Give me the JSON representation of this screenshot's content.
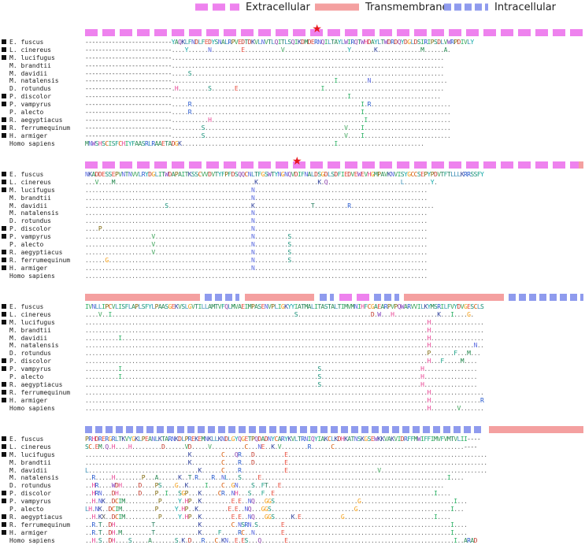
{
  "legend": [
    {
      "label": "Extracellular",
      "color": "#ee82ee",
      "style": "dashed"
    },
    {
      "label": "Transmembrane",
      "color": "#f4a0a0",
      "style": "solid"
    },
    {
      "label": "Intracellular",
      "color": "#8f9bee",
      "style": "dotted"
    }
  ],
  "colors": {
    "extracellular": "#ee82ee",
    "transmembrane": "#f4a0a0",
    "intracellular": "#8f9bee",
    "star": "#e8161c",
    "residues": {
      "A": "#2e8b57",
      "B": "#1aa3a3",
      "C": "#d35400",
      "D": "#c0392b",
      "E": "#e74c3c",
      "F": "#16a085",
      "G": "#f39c12",
      "H": "#e84393",
      "I": "#27ae60",
      "K": "#2c3e99",
      "L": "#3b8fb5",
      "M": "#1e8449",
      "N": "#5b6be0",
      "P": "#7d6608",
      "Q": "#8e44ad",
      "R": "#2255cc",
      "S": "#138d75",
      "T": "#1f7a5a",
      "V": "#3da35a",
      "W": "#7f3fbf",
      "Y": "#0aa5a5",
      "-": "#444",
      ".": "#666"
    }
  },
  "species": [
    {
      "name": "E. fuscus",
      "marked": true
    },
    {
      "name": "L. cinereus",
      "marked": true
    },
    {
      "name": "M. lucifugus",
      "marked": true
    },
    {
      "name": "M. brandtii",
      "marked": false
    },
    {
      "name": "M. davidii",
      "marked": false
    },
    {
      "name": "M. natalensis",
      "marked": false
    },
    {
      "name": "D. rotundus",
      "marked": false
    },
    {
      "name": "P. discolor",
      "marked": true
    },
    {
      "name": "P. vampyrus",
      "marked": true
    },
    {
      "name": "P. alecto",
      "marked": false
    },
    {
      "name": "R. aegyptiacus",
      "marked": true
    },
    {
      "name": "R. ferrumequinum",
      "marked": true
    },
    {
      "name": "H. armiger",
      "marked": true
    },
    {
      "name": "Homo sapiens",
      "marked": false
    }
  ],
  "blocks": [
    {
      "topology": [
        {
          "type": "extracellular",
          "start": 0,
          "end": 100
        }
      ],
      "star_pos": 46.5,
      "seqs": [
        "--------------------------YAQKLFNDLFEDYSNALRPVEDTDKVLNVTLQITLSQIKDMDERNQILTAYLWIRQTWHDAYLTWDRDQYDGLDSIRIPSDLVWRPDIVLY",
        "--------------------------....Y......N.........E...........V...................Y.......K.............M......A.",
        "--------------------------..................................................................................",
        "--------------------------..................................................................................",
        "--------------------------.....S............................................................................",
        "--------------------------.................................................I.........N.......................",
        "--------------------------.H.........S.......E.........................I....................................",
        "--------------------------.....................................................I...........................",
        "--------------------------.....R...................................................I.R........................",
        "--------------------------.....R...................................................I..........................",
        "--------------------------...........H..............................................I.........................",
        "--------------------------.........S..........................................V....I..........................",
        "--------------------------.........S..........................................V....I..........................",
        "MNWSHSCISFCHIYFAASRLRAAETADGK..............................................I.........................."
      ]
    },
    {
      "topology": [
        {
          "type": "extracellular",
          "start": 0,
          "end": 99
        },
        {
          "type": "transmembrane",
          "start": 99,
          "end": 100
        }
      ],
      "star_pos": 42.5,
      "seqs": [
        "NKADDESSEPVNTNVVLRYDGLITWDAPAITKSSCVVDVTYFPFDSQQCNLTFGSWTYNGNQVDIFNALDSGDLSDFIEDVEWEVHGMPAVKNVISYGCCSEPYPDVTFTLLLKRRSSFY",
        "...V....M..........................................K..................K.Q......................L........Y.",
        "..................................................N....................................................",
        "..................................................N....................................................",
        "........................S.........................K.................T..........R.........................",
        "..................................................N....................................................",
        "..................................................N....................................................",
        "....P.............................................N....................................................",
        "....................V.............................N..........S.........................................",
        "....................V.............................N..........S.........................................",
        "....................V.............................N..........S.........................................",
        "......G...........................................N..........S.........................................",
        "..................................................N....................................................",
        "......................................................................................................."
      ]
    },
    {
      "topology": [
        {
          "type": "transmembrane",
          "start": 0,
          "end": 23
        },
        {
          "type": "intracellular",
          "start": 24,
          "end": 31
        },
        {
          "type": "transmembrane",
          "start": 32,
          "end": 46
        },
        {
          "type": "intracellular",
          "start": 47,
          "end": 50
        },
        {
          "type": "extracellular",
          "start": 51,
          "end": 57
        },
        {
          "type": "intracellular",
          "start": 58,
          "end": 63
        },
        {
          "type": "transmembrane",
          "start": 64,
          "end": 84
        },
        {
          "type": "intracellular",
          "start": 85,
          "end": 100
        }
      ],
      "star_pos": null,
      "seqs": [
        "IVNLLIPCVLISFLAPLSFYLPAASGEKVSLGVTILLAMTVFQLMVAEIMPASENVPLIGKYYIATMALITASTALTIMVMNIHFCGAEARPVPQWARVVILKYMSRILFVYDVGESCLS",
        "....V..I.......................................................S......................D.W...H.............K...I....G.",
        ".......................................................................................................H................",
        ".......................................................................................................H................",
        "..........I............................................................................................H................",
        ".......................................................................................................H.............N..",
        ".......................................................................................................P.......F...M...",
        ".......................................................................................................H...F.....M....",
        "..........I...........................................................S..............................H................",
        "..........I...........................................................S..............................H................",
        "......................................................................S..............................H................",
        ".......................................................................................................H................",
        ".......................................................................................................H...............R",
        ".......................................................................................................H........V......."
      ]
    },
    {
      "topology": [
        {
          "type": "intracellular",
          "start": 0,
          "end": 80
        },
        {
          "type": "transmembrane",
          "start": 81,
          "end": 100
        }
      ],
      "star_pos": null,
      "seqs": [
        "PRHDRERGRLTKVYGKLPEANLKTARNKDLPREKEMNKLLKNDLGYQGETPQDADNYCARYKVLTRNIQYIAKCLKDHKATNSKGSEWKKVAKVIDRFFMWIFFIMVFVMTVLII----",
        "SC.EM.Q.H....H.........D......VD.....V..........C...NE..K.V........R......C.......................................----",
        "...............................K.........C...QR...D.........E............................................................",
        "...............................K.........C....R...D.........E............................................................",
        "L.................................K......C....R.............E...........................V................................",
        "..R.....H........P...A......K..T.R....R..NL...S.....E........................................................I....",
        "..HR....WDH.....D....PS....G..K.....I....C..GN....S..FT...E.................................................",
        "..HRN...DH......D....P..I...SGP...K.....CR..NH...S...F..E................................................I....",
        "..H.NK..DCIM..........P.....Y.HP..K.........E.E..NQ...GGS.........................G............................I...",
        "LH.NK..DCIM..........P.....Y.HP..K.........E.E..NQ...GGS.........................G............................I...",
        "..H.KX..DCIM..........P.....Y.HP..K.........E.E..NQ...GGS.....K.E............G...........................I....",
        "..R.T..DH...........T.............K.........C.NSRN.S.......E..................................................I....",
        "..R.T..DH.M.........T.............K.....F.....RC..N........E..................................................I....",
        "..H.S..DH....S.....A.......S.K.D...R...C.KN..E.ES...Q.......E..................................................I..ARAD"
      ]
    }
  ]
}
